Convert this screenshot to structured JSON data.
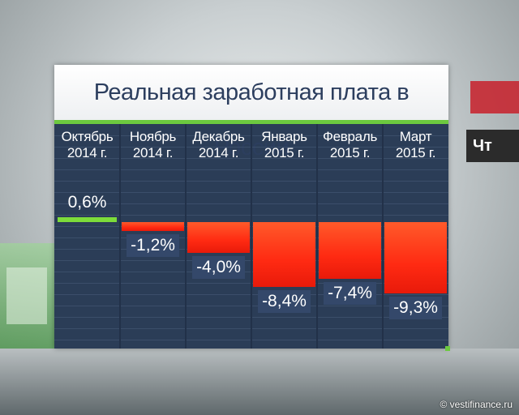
{
  "title": "Реальная заработная плата в России",
  "source": "© vestifinance.ru",
  "bg_logo": "Чт",
  "colors": {
    "panel": "#2b3d57",
    "accent_green": "#6cc93f",
    "positive_bar": "#7ddc3a",
    "negative_bar": "#ff3a1a",
    "title_text": "#2c3e5e"
  },
  "chart_data": {
    "type": "bar",
    "title": "Реальная заработная плата в России",
    "categories": [
      {
        "month": "Октябрь",
        "year": "2014 г."
      },
      {
        "month": "Ноябрь",
        "year": "2014 г."
      },
      {
        "month": "Декабрь",
        "year": "2014 г."
      },
      {
        "month": "Январь",
        "year": "2015 г."
      },
      {
        "month": "Февраль",
        "year": "2015 г."
      },
      {
        "month": "Март",
        "year": "2015 г."
      }
    ],
    "values": [
      0.6,
      -1.2,
      -4.0,
      -8.4,
      -7.4,
      -9.3
    ],
    "value_labels": [
      "0,6%",
      "-1,2%",
      "-4,0%",
      "-8,4%",
      "-7,4%",
      "-9,3%"
    ],
    "unit": "%",
    "grid": true
  }
}
